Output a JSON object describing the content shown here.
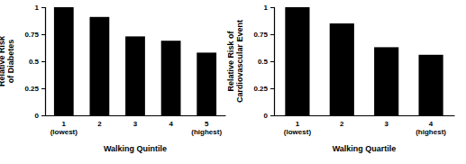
{
  "chart_data": [
    {
      "type": "bar",
      "y_label": "Relative Risk\nof Diabetes",
      "x_label": "Walking Quintile",
      "categories": [
        "1\n(lowest)",
        "2",
        "3",
        "4",
        "5\n(highest)"
      ],
      "values": [
        1.0,
        0.91,
        0.73,
        0.69,
        0.58
      ],
      "color": "#000000",
      "ylim": [
        0,
        1
      ],
      "yticks": [
        0,
        0.25,
        0.5,
        0.75,
        1
      ]
    },
    {
      "type": "bar",
      "y_label": "Relative Risk of\nCardiovascular Event",
      "x_label": "Walking Quartile",
      "categories": [
        "1\n(lowest)",
        "2",
        "3",
        "4\n(highest)"
      ],
      "values": [
        1.0,
        0.85,
        0.63,
        0.56
      ],
      "color": "#000000",
      "ylim": [
        0,
        1
      ],
      "yticks": [
        0,
        0.25,
        0.5,
        0.75,
        1
      ]
    }
  ]
}
